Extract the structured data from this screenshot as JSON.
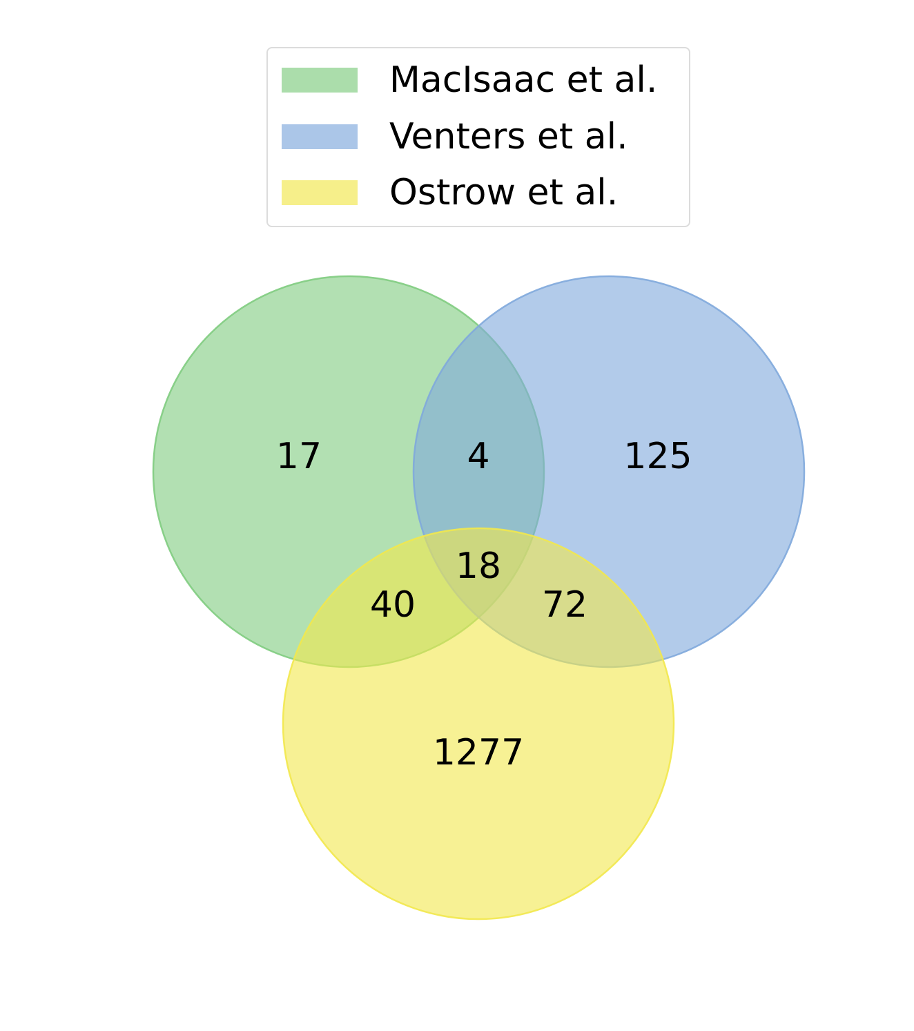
{
  "chart_data": {
    "type": "venn",
    "sets": [
      {
        "name": "MacIsaac et al.",
        "color": "#7fcc7f"
      },
      {
        "name": "Venters et al.",
        "color": "#7fa9dc"
      },
      {
        "name": "Ostrow et al.",
        "color": "#f2e84c"
      }
    ],
    "regions": [
      {
        "sets": [
          "MacIsaac et al."
        ],
        "value": "17"
      },
      {
        "sets": [
          "MacIsaac et al.",
          "Venters et al."
        ],
        "value": "4"
      },
      {
        "sets": [
          "Venters et al."
        ],
        "value": "125"
      },
      {
        "sets": [
          "MacIsaac et al.",
          "Venters et al.",
          "Ostrow et al."
        ],
        "value": "18"
      },
      {
        "sets": [
          "MacIsaac et al.",
          "Ostrow et al."
        ],
        "value": "40"
      },
      {
        "sets": [
          "Venters et al.",
          "Ostrow et al."
        ],
        "value": "72"
      },
      {
        "sets": [
          "Ostrow et al."
        ],
        "value": "1277"
      }
    ],
    "legend_position": "top-center"
  }
}
